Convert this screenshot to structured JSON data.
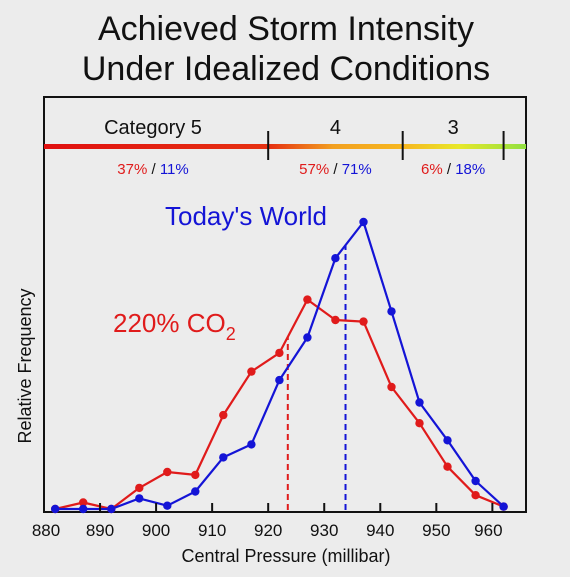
{
  "chart_data": {
    "type": "line",
    "title": [
      "Achieved Storm Intensity",
      "Under Idealized Conditions"
    ],
    "xlabel": "Central Pressure (millibar)",
    "ylabel": "Relative Frequency",
    "xlim": [
      880,
      966
    ],
    "ylim": [
      0,
      1
    ],
    "x_ticks": [
      880,
      890,
      900,
      910,
      920,
      930,
      940,
      950,
      960
    ],
    "grid": false,
    "categories_bar": {
      "boundaries": [
        920,
        944,
        962
      ],
      "segments": [
        {
          "label": "Category 5",
          "pct_co2": "37%",
          "pct_today": "11%"
        },
        {
          "label": "4",
          "pct_co2": "57%",
          "pct_today": "71%"
        },
        {
          "label": "3",
          "pct_co2": "6%",
          "pct_today": "18%"
        }
      ],
      "separator": " / "
    },
    "series": [
      {
        "name": "Today's World",
        "color": "#1414d6",
        "mean": 933.8,
        "points": [
          [
            882,
            0.0
          ],
          [
            887,
            0.0
          ],
          [
            892,
            0.0
          ],
          [
            897,
            0.026
          ],
          [
            902,
            0.008
          ],
          [
            907,
            0.043
          ],
          [
            912,
            0.127
          ],
          [
            917,
            0.159
          ],
          [
            922,
            0.317
          ],
          [
            927,
            0.422
          ],
          [
            932,
            0.617
          ],
          [
            937,
            0.706
          ],
          [
            942,
            0.486
          ],
          [
            947,
            0.262
          ],
          [
            952,
            0.169
          ],
          [
            957,
            0.069
          ],
          [
            962,
            0.006
          ]
        ]
      },
      {
        "name": "220% CO",
        "name_subscript": "2",
        "color": "#e01b1b",
        "mean": 923.5,
        "points": [
          [
            882,
            0.0
          ],
          [
            887,
            0.016
          ],
          [
            892,
            0.0
          ],
          [
            897,
            0.052
          ],
          [
            902,
            0.091
          ],
          [
            907,
            0.084
          ],
          [
            912,
            0.231
          ],
          [
            917,
            0.338
          ],
          [
            922,
            0.384
          ],
          [
            927,
            0.515
          ],
          [
            932,
            0.465
          ],
          [
            937,
            0.461
          ],
          [
            942,
            0.3
          ],
          [
            947,
            0.211
          ],
          [
            952,
            0.104
          ],
          [
            957,
            0.034
          ],
          [
            962,
            0.006
          ]
        ]
      }
    ]
  }
}
